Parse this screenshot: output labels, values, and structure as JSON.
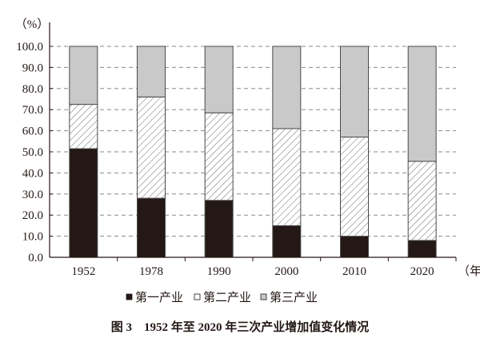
{
  "chart_data": {
    "type": "bar",
    "stacked": true,
    "title": "图 3　1952 年至 2020 年三次产业增加值变化情况",
    "ylabel": "（%）",
    "xlabel": "（年）",
    "ylim": [
      0,
      100
    ],
    "yticks": [
      "0.0",
      "10.0",
      "20.0",
      "30.0",
      "40.0",
      "50.0",
      "60.0",
      "70.0",
      "80.0",
      "90.0",
      "100.0"
    ],
    "grid": "horizontal dashed",
    "legend_position": "bottom",
    "categories": [
      "1952",
      "1978",
      "1990",
      "2000",
      "2010",
      "2020"
    ],
    "series": [
      {
        "name": "第一产业",
        "color": "#231815",
        "fill": "solid",
        "values": [
          51.5,
          28.0,
          27.0,
          15.0,
          10.0,
          8.0
        ]
      },
      {
        "name": "第二产业",
        "color": "#ffffff",
        "fill": "hatched",
        "values": [
          21.0,
          48.0,
          41.5,
          46.0,
          47.0,
          37.5
        ]
      },
      {
        "name": "第三产业",
        "color": "#c9c9ca",
        "fill": "solid",
        "values": [
          27.5,
          24.0,
          31.5,
          39.0,
          43.0,
          54.5
        ]
      }
    ]
  }
}
